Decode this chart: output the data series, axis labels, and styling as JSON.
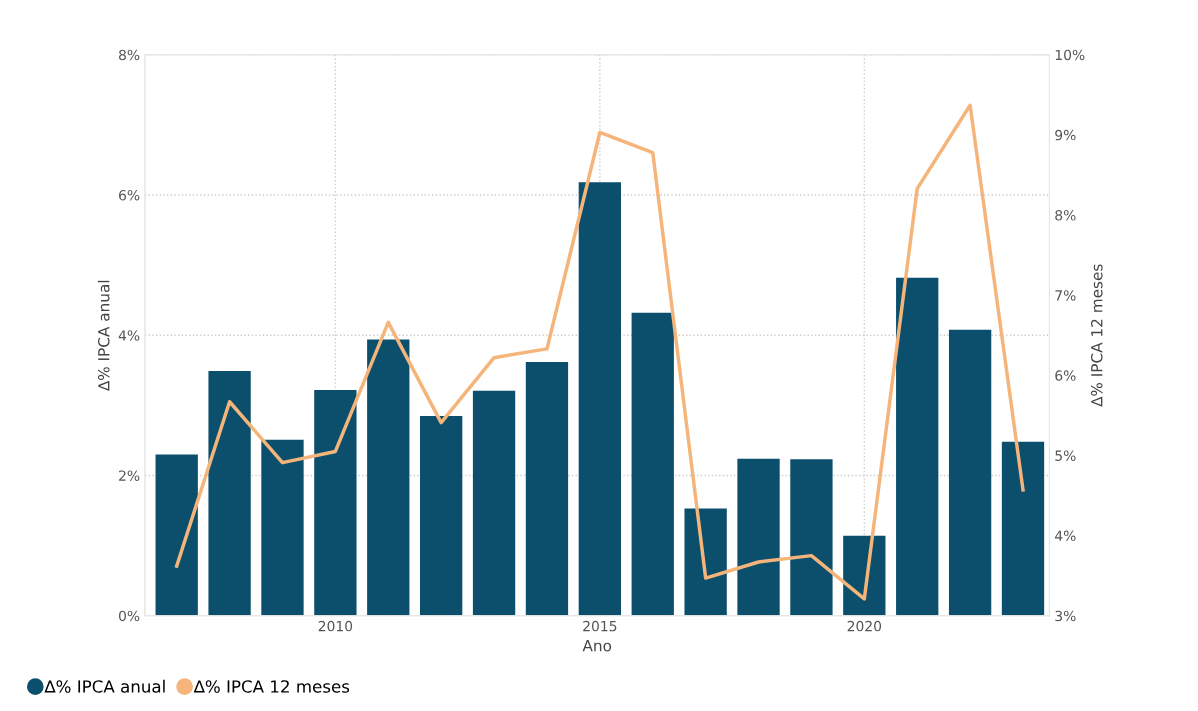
{
  "chart_data": {
    "type": "bar",
    "xlabel": "Ano",
    "ylabel": "∆% IPCA anual",
    "y2label": "∆% IPCA 12 meses",
    "x": [
      2007,
      2008,
      2009,
      2010,
      2011,
      2012,
      2013,
      2014,
      2015,
      2016,
      2017,
      2018,
      2019,
      2020,
      2021,
      2022,
      2023
    ],
    "xlim": [
      2006.4,
      2023.5
    ],
    "xticks": [
      2010,
      2015,
      2020
    ],
    "ylim": [
      0,
      8
    ],
    "yticks": [
      {
        "value": 0,
        "label": "0%"
      },
      {
        "value": 2,
        "label": "2%"
      },
      {
        "value": 4,
        "label": "4%"
      },
      {
        "value": 6,
        "label": "6%"
      },
      {
        "value": 8,
        "label": "8%"
      }
    ],
    "y2lim": [
      3,
      10
    ],
    "y2ticks": [
      {
        "value": 3,
        "label": "3%"
      },
      {
        "value": 4,
        "label": "4%"
      },
      {
        "value": 5,
        "label": "5%"
      },
      {
        "value": 6,
        "label": "6%"
      },
      {
        "value": 7,
        "label": "7%"
      },
      {
        "value": 8,
        "label": "8%"
      },
      {
        "value": 9,
        "label": "9%"
      },
      {
        "value": 10,
        "label": "10%"
      }
    ],
    "series": [
      {
        "name": "∆% IPCA anual",
        "color": "#0b4f6c",
        "values": [
          2.3,
          3.49,
          2.51,
          3.22,
          3.94,
          2.85,
          3.21,
          3.62,
          6.18,
          4.32,
          1.53,
          2.24,
          2.23,
          1.14,
          4.82,
          4.08,
          2.48
        ]
      },
      {
        "name": "∆% IPCA 12 meses",
        "type": "line",
        "axis": "y2",
        "color": "#f5b57a",
        "values": [
          3.62,
          5.67,
          4.91,
          5.05,
          6.66,
          5.41,
          6.22,
          6.33,
          9.03,
          8.78,
          3.47,
          3.67,
          3.75,
          3.21,
          8.33,
          9.37,
          4.57
        ]
      }
    ],
    "grid": true,
    "legend": "bottom left",
    "marker": "none",
    "line_style": "solid"
  }
}
